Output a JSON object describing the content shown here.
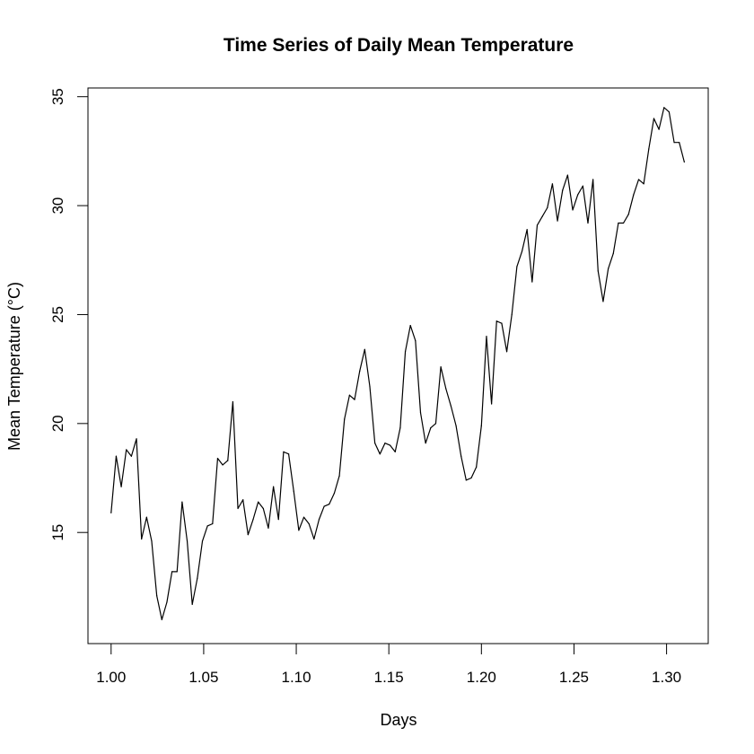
{
  "chart_data": {
    "type": "line",
    "title": "Time Series of Daily Mean Temperature",
    "xlabel": "Days",
    "ylabel": "Mean Temperature (°C)",
    "xlim": [
      0.9875,
      1.3225
    ],
    "ylim": [
      9.9,
      35.4
    ],
    "x_ticks": [
      "1.00",
      "1.05",
      "1.10",
      "1.15",
      "1.20",
      "1.25",
      "1.30"
    ],
    "y_ticks": [
      "15",
      "20",
      "25",
      "30",
      "35"
    ],
    "grid": false,
    "x_start": 1.0,
    "x_step": 0.0027397,
    "series": [
      {
        "color": "#000000",
        "values": [
          15.9,
          18.5,
          17.1,
          18.8,
          18.5,
          19.3,
          14.7,
          15.7,
          14.6,
          12.1,
          11.0,
          11.8,
          13.2,
          13.2,
          16.4,
          14.6,
          11.7,
          12.9,
          14.6,
          15.3,
          15.4,
          18.4,
          18.1,
          18.3,
          21.0,
          16.1,
          16.5,
          14.9,
          15.6,
          16.4,
          16.1,
          15.2,
          17.1,
          15.6,
          18.7,
          18.6,
          16.9,
          15.1,
          15.7,
          15.4,
          14.7,
          15.6,
          16.2,
          16.3,
          16.8,
          17.6,
          20.2,
          21.3,
          21.1,
          22.4,
          23.4,
          21.7,
          19.1,
          18.6,
          19.1,
          19.0,
          18.7,
          19.8,
          23.3,
          24.5,
          23.8,
          20.5,
          19.1,
          19.8,
          20.0,
          22.6,
          21.6,
          20.8,
          19.9,
          18.5,
          17.4,
          17.5,
          18.0,
          19.9,
          24.0,
          20.9,
          24.7,
          24.6,
          23.3,
          25.0,
          27.2,
          27.9,
          28.9,
          26.5,
          29.1,
          29.5,
          29.9,
          31.0,
          29.3,
          30.7,
          31.4,
          29.8,
          30.5,
          30.9,
          29.2,
          31.2,
          27.0,
          25.6,
          27.1,
          27.8,
          29.2,
          29.2,
          29.6,
          30.5,
          31.2,
          31.0,
          32.6,
          34.0,
          33.5,
          34.5,
          34.3,
          32.9,
          32.9,
          32.0
        ]
      }
    ]
  }
}
